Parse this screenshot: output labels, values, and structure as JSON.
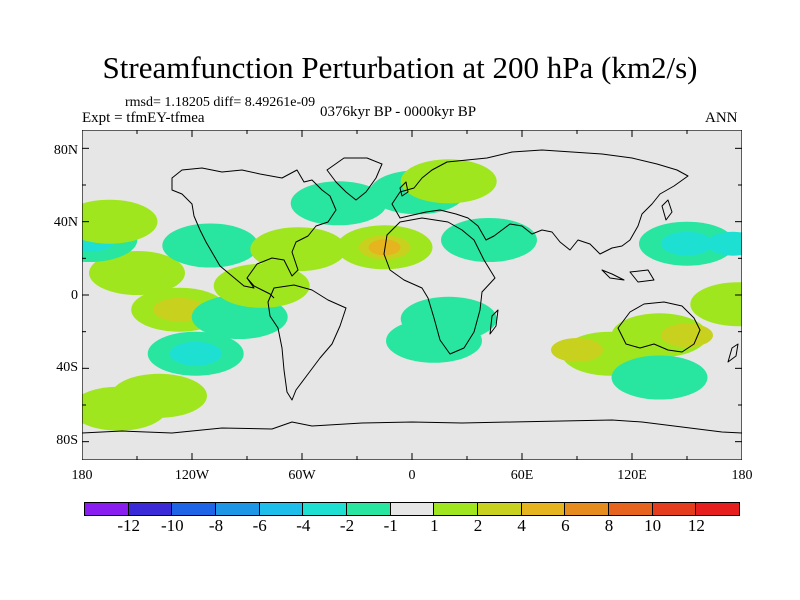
{
  "title": "Streamfunction Perturbation at 200 hPa (km2/s)",
  "stats": "rmsd= 1.18205 diff= 8.49261e-09",
  "experiment": "Expt = tfmEY-tfmea",
  "period": "0376kyr BP - 0000kyr BP",
  "season": "ANN",
  "lat_labels": [
    "80N",
    "40N",
    "0",
    "40S",
    "80S"
  ],
  "lon_labels": [
    "180",
    "120W",
    "60W",
    "0",
    "60E",
    "120E",
    "180"
  ],
  "colorbar": {
    "labels": [
      "-12",
      "-10",
      "-8",
      "-6",
      "-4",
      "-2",
      "-1",
      "1",
      "2",
      "4",
      "6",
      "8",
      "10",
      "12"
    ],
    "colors": [
      "#8a1ef0",
      "#3a2ad8",
      "#1e64e6",
      "#1e96e6",
      "#1ebeeb",
      "#1ee0d2",
      "#28e6a0",
      "#e6e6e6",
      "#a0e61e",
      "#c8d21e",
      "#e6b41e",
      "#e68c1e",
      "#e6641e",
      "#e63c1e",
      "#e61e1e"
    ]
  },
  "anomalies": [
    {
      "lon": -150,
      "lat": 12,
      "level": 1
    },
    {
      "lon": -127,
      "lat": -8,
      "level": 1
    },
    {
      "lon": -127,
      "lat": -8,
      "level": 2
    },
    {
      "lon": -118,
      "lat": -32,
      "level": -1
    },
    {
      "lon": -118,
      "lat": -32,
      "level": -2
    },
    {
      "lon": -110,
      "lat": 27,
      "level": -1
    },
    {
      "lon": -176,
      "lat": 30,
      "level": -1
    },
    {
      "lon": -176,
      "lat": 30,
      "level": -2
    },
    {
      "lon": -160,
      "lat": -62,
      "level": 1
    },
    {
      "lon": -138,
      "lat": -55,
      "level": 1
    },
    {
      "lon": -165,
      "lat": 40,
      "level": 1
    },
    {
      "lon": -94,
      "lat": -12,
      "level": -1
    },
    {
      "lon": -82,
      "lat": 5,
      "level": 1
    },
    {
      "lon": -62,
      "lat": 25,
      "level": 1
    },
    {
      "lon": -15,
      "lat": 26,
      "level": 1
    },
    {
      "lon": -15,
      "lat": 26,
      "level": 2
    },
    {
      "lon": -15,
      "lat": 26,
      "level": 4
    },
    {
      "lon": -40,
      "lat": 50,
      "level": -1
    },
    {
      "lon": 3,
      "lat": 56,
      "level": -1
    },
    {
      "lon": 42,
      "lat": 30,
      "level": -1
    },
    {
      "lon": 20,
      "lat": 62,
      "level": 1
    },
    {
      "lon": 20,
      "lat": -13,
      "level": -1
    },
    {
      "lon": 12,
      "lat": -25,
      "level": -1
    },
    {
      "lon": 150,
      "lat": 28,
      "level": -1
    },
    {
      "lon": 150,
      "lat": 28,
      "level": -2
    },
    {
      "lon": 175,
      "lat": 28,
      "level": -2
    },
    {
      "lon": 108,
      "lat": -32,
      "level": 1
    },
    {
      "lon": 90,
      "lat": -30,
      "level": 2
    },
    {
      "lon": 135,
      "lat": -22,
      "level": 1
    },
    {
      "lon": 150,
      "lat": -22,
      "level": 2
    },
    {
      "lon": 135,
      "lat": -45,
      "level": -1
    },
    {
      "lon": 178,
      "lat": -5,
      "level": 1
    }
  ]
}
